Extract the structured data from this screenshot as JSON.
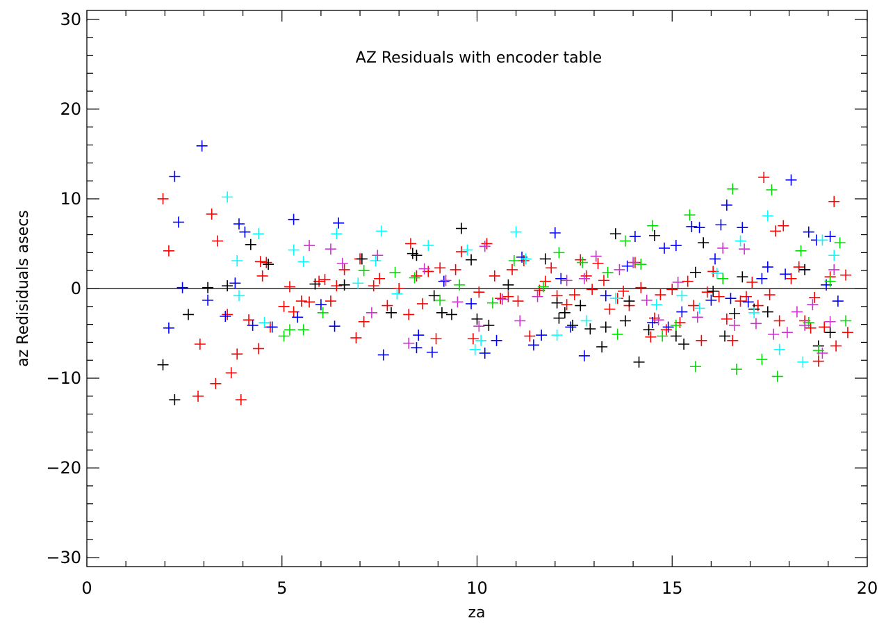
{
  "chart_data": {
    "type": "scatter",
    "title": "AZ Residuals with encoder table",
    "xlabel": "za",
    "ylabel": "az Redisiduals asecs",
    "xlim": [
      0,
      20
    ],
    "ylim": [
      -31,
      31
    ],
    "xticks": [
      0,
      5,
      10,
      15,
      20
    ],
    "yticks": [
      -30,
      -20,
      -10,
      0,
      10,
      20,
      30
    ],
    "grid": false,
    "marker": "plus",
    "reference_line_y": 0,
    "series": [
      {
        "color": "#ff0000",
        "points": [
          [
            1.95,
            10
          ],
          [
            2.1,
            4.2
          ],
          [
            2.85,
            -12
          ],
          [
            2.9,
            -6.2
          ],
          [
            3.2,
            8.3
          ],
          [
            3.3,
            -10.6
          ],
          [
            3.35,
            5.3
          ],
          [
            3.6,
            -2.9
          ],
          [
            3.7,
            -9.4
          ],
          [
            3.85,
            -7.3
          ],
          [
            3.95,
            -12.4
          ],
          [
            4.15,
            -3.5
          ],
          [
            4.4,
            -6.7
          ],
          [
            4.45,
            3
          ],
          [
            4.5,
            1.4
          ],
          [
            4.6,
            2.9
          ],
          [
            4.7,
            -4.3
          ],
          [
            5.05,
            -2
          ],
          [
            5.2,
            0.2
          ],
          [
            5.3,
            -2.6
          ],
          [
            5.5,
            -1.4
          ],
          [
            5.7,
            -1.5
          ],
          [
            5.95,
            0.8
          ],
          [
            6.1,
            1
          ],
          [
            6.25,
            -1.4
          ],
          [
            6.4,
            0.3
          ],
          [
            6.6,
            2.1
          ],
          [
            6.9,
            -5.5
          ],
          [
            7,
            3.3
          ],
          [
            7.1,
            -3.7
          ],
          [
            7.35,
            0.3
          ],
          [
            7.5,
            1.1
          ],
          [
            7.7,
            -1.9
          ],
          [
            8,
            0
          ],
          [
            8.25,
            -2.9
          ],
          [
            8.3,
            5
          ],
          [
            8.45,
            1.4
          ],
          [
            8.6,
            -1.7
          ],
          [
            8.75,
            1.9
          ],
          [
            8.95,
            -5.6
          ],
          [
            9.05,
            2.3
          ],
          [
            9.45,
            2.1
          ],
          [
            9.6,
            4.1
          ],
          [
            9.9,
            -5.6
          ],
          [
            10.05,
            -0.4
          ],
          [
            10.25,
            5
          ],
          [
            10.45,
            1.4
          ],
          [
            10.6,
            -1.1
          ],
          [
            10.8,
            -0.9
          ],
          [
            10.9,
            2.1
          ],
          [
            11.05,
            -1.4
          ],
          [
            11.2,
            3.1
          ],
          [
            11.35,
            -5.3
          ],
          [
            11.6,
            -0.2
          ],
          [
            11.75,
            0.8
          ],
          [
            11.9,
            2.3
          ],
          [
            12.05,
            -0.8
          ],
          [
            12.3,
            -1.8
          ],
          [
            12.5,
            -0.7
          ],
          [
            12.65,
            3.2
          ],
          [
            12.8,
            1.4
          ],
          [
            12.95,
            -0.1
          ],
          [
            13.1,
            2.8
          ],
          [
            13.25,
            0.9
          ],
          [
            13.4,
            -2.3
          ],
          [
            13.6,
            -1.1
          ],
          [
            13.75,
            -0.3
          ],
          [
            13.9,
            -1.9
          ],
          [
            14.05,
            2.9
          ],
          [
            14.2,
            0.1
          ],
          [
            14.45,
            -5.4
          ],
          [
            14.55,
            -3.3
          ],
          [
            14.7,
            -0.7
          ],
          [
            14.85,
            -4.6
          ],
          [
            15,
            -0.1
          ],
          [
            15.2,
            -3.8
          ],
          [
            15.4,
            0.8
          ],
          [
            15.55,
            -1.9
          ],
          [
            15.75,
            -5.8
          ],
          [
            15.9,
            -0.4
          ],
          [
            16.05,
            1.9
          ],
          [
            16.2,
            -0.9
          ],
          [
            16.4,
            -3.4
          ],
          [
            16.55,
            -5.8
          ],
          [
            16.75,
            -1.4
          ],
          [
            16.9,
            -0.9
          ],
          [
            17.05,
            0.7
          ],
          [
            17.2,
            -1.9
          ],
          [
            17.35,
            12.4
          ],
          [
            17.5,
            -0.7
          ],
          [
            17.65,
            6.4
          ],
          [
            17.75,
            -3.6
          ],
          [
            17.85,
            7
          ],
          [
            18.05,
            1.1
          ],
          [
            18.25,
            2.4
          ],
          [
            18.4,
            -3.6
          ],
          [
            18.55,
            -4.4
          ],
          [
            18.65,
            -1
          ],
          [
            18.75,
            -8.1
          ],
          [
            18.9,
            -4.3
          ],
          [
            19.05,
            1.3
          ],
          [
            19.15,
            9.7
          ],
          [
            19.2,
            -6.4
          ],
          [
            19.45,
            1.5
          ],
          [
            19.5,
            -4.9
          ]
        ]
      },
      {
        "color": "#0000ff",
        "points": [
          [
            2.1,
            -4.4
          ],
          [
            2.25,
            12.5
          ],
          [
            2.35,
            7.4
          ],
          [
            2.45,
            0.1
          ],
          [
            2.95,
            15.9
          ],
          [
            3.1,
            -1.3
          ],
          [
            3.55,
            -3.1
          ],
          [
            3.8,
            0.6
          ],
          [
            3.9,
            7.2
          ],
          [
            4.05,
            6.3
          ],
          [
            4.25,
            -4.1
          ],
          [
            4.75,
            -4.3
          ],
          [
            5.3,
            7.7
          ],
          [
            5.4,
            -3.2
          ],
          [
            6,
            -1.8
          ],
          [
            6.35,
            -4.2
          ],
          [
            6.45,
            7.3
          ],
          [
            7.6,
            -7.4
          ],
          [
            8.45,
            -6.6
          ],
          [
            8.5,
            -5.2
          ],
          [
            8.85,
            -7.1
          ],
          [
            9.15,
            0.8
          ],
          [
            9.85,
            -1.7
          ],
          [
            10.2,
            -7.2
          ],
          [
            10.5,
            -5.8
          ],
          [
            11.15,
            3.5
          ],
          [
            11.45,
            -6.3
          ],
          [
            11.65,
            -5.2
          ],
          [
            12,
            6.2
          ],
          [
            12.15,
            1.1
          ],
          [
            12.4,
            -4.3
          ],
          [
            12.75,
            -7.5
          ],
          [
            13.3,
            -0.8
          ],
          [
            13.85,
            2.5
          ],
          [
            14.05,
            5.8
          ],
          [
            14.5,
            -3.8
          ],
          [
            14.8,
            4.5
          ],
          [
            14.9,
            -4.3
          ],
          [
            15.1,
            4.8
          ],
          [
            15.25,
            -2.6
          ],
          [
            15.5,
            6.9
          ],
          [
            15.7,
            6.8
          ],
          [
            16,
            -1.3
          ],
          [
            16.1,
            3.3
          ],
          [
            16.25,
            7.1
          ],
          [
            16.4,
            9.3
          ],
          [
            16.5,
            -1.1
          ],
          [
            16.8,
            6.8
          ],
          [
            16.95,
            -1.5
          ],
          [
            17.3,
            1.1
          ],
          [
            17.45,
            2.4
          ],
          [
            17.9,
            1.6
          ],
          [
            18.05,
            12.1
          ],
          [
            18.4,
            2.1
          ],
          [
            18.5,
            6.3
          ],
          [
            18.7,
            5.4
          ],
          [
            18.95,
            0.4
          ],
          [
            19.05,
            5.8
          ],
          [
            19.25,
            -1.4
          ]
        ]
      },
      {
        "color": "#000000",
        "points": [
          [
            1.95,
            -8.5
          ],
          [
            2.25,
            -12.4
          ],
          [
            2.6,
            -2.9
          ],
          [
            3.1,
            0.1
          ],
          [
            3.6,
            0.3
          ],
          [
            4.2,
            4.9
          ],
          [
            4.65,
            2.7
          ],
          [
            5.85,
            0.5
          ],
          [
            6.6,
            0.4
          ],
          [
            7.05,
            3.3
          ],
          [
            7.8,
            -2.7
          ],
          [
            8.35,
            3.9
          ],
          [
            8.45,
            3.7
          ],
          [
            8.9,
            -0.8
          ],
          [
            9.1,
            -2.7
          ],
          [
            9.35,
            -2.9
          ],
          [
            9.6,
            6.7
          ],
          [
            9.85,
            3.2
          ],
          [
            10,
            -3.4
          ],
          [
            10.3,
            -4.1
          ],
          [
            10.8,
            0.4
          ],
          [
            11.75,
            3.3
          ],
          [
            12.05,
            -1.6
          ],
          [
            12.1,
            -3.3
          ],
          [
            12.25,
            -2.7
          ],
          [
            12.45,
            -4.1
          ],
          [
            12.65,
            -1.9
          ],
          [
            12.9,
            -4.5
          ],
          [
            13.2,
            -6.5
          ],
          [
            13.3,
            -4.3
          ],
          [
            13.55,
            6.1
          ],
          [
            13.8,
            -3.6
          ],
          [
            13.9,
            -1.4
          ],
          [
            14.15,
            -8.2
          ],
          [
            14.4,
            -4.6
          ],
          [
            14.55,
            5.9
          ],
          [
            15.1,
            -5.3
          ],
          [
            15.3,
            -6.2
          ],
          [
            15.6,
            1.8
          ],
          [
            15.8,
            5.1
          ],
          [
            16.05,
            -0.3
          ],
          [
            16.35,
            -5.3
          ],
          [
            16.6,
            -2.8
          ],
          [
            16.8,
            1.3
          ],
          [
            17.1,
            -2.3
          ],
          [
            17.45,
            -2.6
          ],
          [
            18.4,
            2.1
          ],
          [
            18.75,
            -6.4
          ],
          [
            19.05,
            -4.9
          ]
        ]
      },
      {
        "color": "#00ffff",
        "points": [
          [
            3.6,
            10.2
          ],
          [
            3.85,
            3.1
          ],
          [
            3.9,
            -0.8
          ],
          [
            4.4,
            6.1
          ],
          [
            4.55,
            -3.8
          ],
          [
            5.3,
            4.3
          ],
          [
            5.55,
            3
          ],
          [
            6.4,
            6.1
          ],
          [
            6.95,
            0.6
          ],
          [
            7.4,
            3.1
          ],
          [
            7.55,
            6.4
          ],
          [
            7.95,
            -0.6
          ],
          [
            8.75,
            4.8
          ],
          [
            9.75,
            4.3
          ],
          [
            9.95,
            -6.8
          ],
          [
            10.1,
            -5.8
          ],
          [
            11,
            6.3
          ],
          [
            11.25,
            3.3
          ],
          [
            12.05,
            -5.2
          ],
          [
            12.8,
            -3.6
          ],
          [
            13.55,
            -1.1
          ],
          [
            14.6,
            -1.8
          ],
          [
            15.25,
            -0.8
          ],
          [
            15.7,
            -2.2
          ],
          [
            16.15,
            1.7
          ],
          [
            16.75,
            5.3
          ],
          [
            17.1,
            -2.7
          ],
          [
            17.45,
            8.1
          ],
          [
            17.75,
            -6.8
          ],
          [
            18.35,
            -8.2
          ],
          [
            18.85,
            5.4
          ],
          [
            19.15,
            3.7
          ]
        ]
      },
      {
        "color": "#00dd00",
        "points": [
          [
            5.05,
            -5.3
          ],
          [
            5.2,
            -4.6
          ],
          [
            5.55,
            -4.6
          ],
          [
            6.05,
            -2.7
          ],
          [
            7.1,
            2
          ],
          [
            7.9,
            1.8
          ],
          [
            8.4,
            1.2
          ],
          [
            9.05,
            -1.3
          ],
          [
            9.55,
            0.4
          ],
          [
            10.4,
            -1.6
          ],
          [
            10.95,
            3.1
          ],
          [
            11.7,
            0.2
          ],
          [
            12.1,
            4
          ],
          [
            12.7,
            2.9
          ],
          [
            13.35,
            1.8
          ],
          [
            13.6,
            -5.1
          ],
          [
            13.8,
            5.3
          ],
          [
            14.2,
            2.7
          ],
          [
            14.5,
            7
          ],
          [
            14.75,
            -5.3
          ],
          [
            15.1,
            -4.1
          ],
          [
            15.45,
            8.2
          ],
          [
            15.6,
            -8.7
          ],
          [
            16.3,
            1.1
          ],
          [
            16.55,
            11.1
          ],
          [
            16.65,
            -9
          ],
          [
            17.3,
            -7.9
          ],
          [
            17.55,
            11
          ],
          [
            17.7,
            -9.8
          ],
          [
            18.3,
            4.2
          ],
          [
            18.5,
            -3.8
          ],
          [
            18.75,
            -6.9
          ],
          [
            19.05,
            0.8
          ],
          [
            19.3,
            5.1
          ],
          [
            19.45,
            -3.6
          ]
        ]
      },
      {
        "color": "#cc33cc",
        "points": [
          [
            5.7,
            4.8
          ],
          [
            6.25,
            4.4
          ],
          [
            6.55,
            2.8
          ],
          [
            7.3,
            -2.7
          ],
          [
            7.45,
            3.7
          ],
          [
            8.25,
            -6.1
          ],
          [
            8.65,
            2.2
          ],
          [
            9.2,
            0.9
          ],
          [
            9.5,
            -1.5
          ],
          [
            10.05,
            -4.2
          ],
          [
            10.2,
            4.7
          ],
          [
            10.65,
            -1.2
          ],
          [
            11.1,
            -3.6
          ],
          [
            11.55,
            -0.9
          ],
          [
            12.3,
            0.9
          ],
          [
            12.75,
            1.1
          ],
          [
            13.05,
            3.6
          ],
          [
            13.65,
            2.1
          ],
          [
            14,
            2.9
          ],
          [
            14.35,
            -1.3
          ],
          [
            14.65,
            -3.5
          ],
          [
            15.15,
            0.7
          ],
          [
            15.65,
            -3.2
          ],
          [
            16.3,
            4.5
          ],
          [
            16.6,
            -4.1
          ],
          [
            16.85,
            4.4
          ],
          [
            17.15,
            -3.9
          ],
          [
            17.6,
            -5.1
          ],
          [
            17.95,
            -4.9
          ],
          [
            18.2,
            -2.6
          ],
          [
            18.4,
            -4.1
          ],
          [
            18.6,
            -1.8
          ],
          [
            18.85,
            -7.2
          ],
          [
            19.05,
            -3.7
          ],
          [
            19.15,
            2.1
          ]
        ]
      }
    ]
  }
}
